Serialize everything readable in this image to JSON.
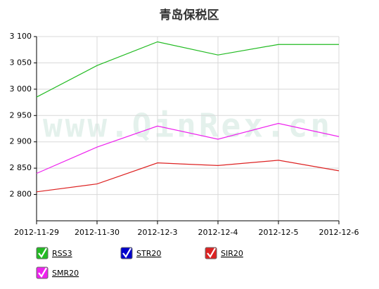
{
  "chart_data": {
    "type": "line",
    "title": "青岛保税区",
    "watermark": "www.QinRex.cn",
    "categories": [
      "2012-11-29",
      "2012-11-30",
      "2012-12-3",
      "2012-12-4",
      "2012-12-5",
      "2012-12-6"
    ],
    "series": [
      {
        "name": "RSS3",
        "color": "#22bb22",
        "values": [
          2985,
          3045,
          3090,
          3065,
          3085,
          3085
        ]
      },
      {
        "name": "STR20",
        "color": "#0000cc",
        "values": [
          null,
          null,
          null,
          null,
          null,
          null
        ]
      },
      {
        "name": "SIR20",
        "color": "#dd2222",
        "values": [
          2805,
          2820,
          2860,
          2855,
          2865,
          2845
        ]
      },
      {
        "name": "SMR20",
        "color": "#ee22ee",
        "values": [
          2840,
          2890,
          2930,
          2905,
          2935,
          2910
        ]
      }
    ],
    "ylim": [
      2750,
      3100
    ],
    "yticks": [
      {
        "value": 2800,
        "label": "2 800"
      },
      {
        "value": 2850,
        "label": "2 850"
      },
      {
        "value": 2900,
        "label": "2 900"
      },
      {
        "value": 2950,
        "label": "2 950"
      },
      {
        "value": 3000,
        "label": "3 000"
      },
      {
        "value": 3050,
        "label": "3 050"
      },
      {
        "value": 3100,
        "label": "3 100"
      }
    ],
    "grid": true
  }
}
